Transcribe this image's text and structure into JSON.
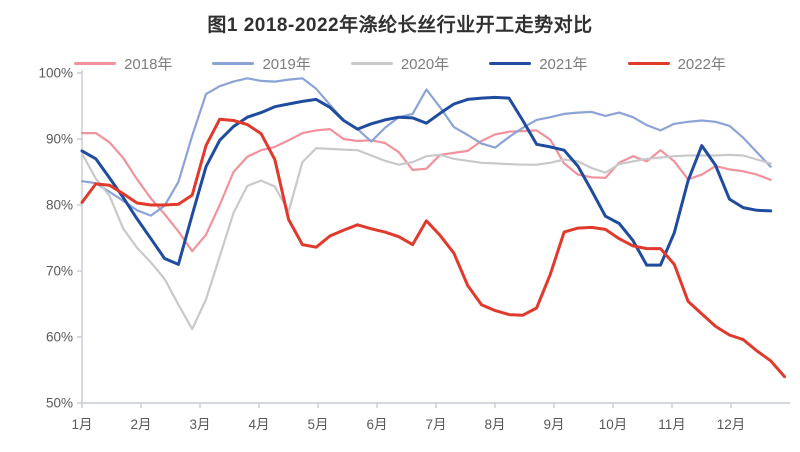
{
  "title": "图1 2018-2022年涤纶长丝行业开工走势对比",
  "colors": {
    "title_text": "#303030",
    "axis_line": "#c6cbd0",
    "tick_label": "#595959",
    "legend_label": "#7d7d7d",
    "background": "#ffffff"
  },
  "chart_data": {
    "type": "line",
    "title": "图1 2018-2022年涤纶长丝行业开工走势对比",
    "unit": "%",
    "grid": false,
    "legend_position": "top",
    "x_axis": {
      "labels": [
        "1月",
        "2月",
        "3月",
        "4月",
        "5月",
        "6月",
        "7月",
        "8月",
        "9月",
        "10月",
        "11月",
        "12月"
      ],
      "note": "weekly operating-rate data, ~4.33 points per month"
    },
    "y_axis": {
      "min": 50,
      "max": 100,
      "step": 10,
      "tick_labels": [
        "50%",
        "60%",
        "70%",
        "80%",
        "90%",
        "100%"
      ]
    },
    "series": [
      {
        "name": "2018年",
        "color": "#f2929d",
        "width": 2.2,
        "values": [
          90.9,
          90.9,
          89.5,
          87.1,
          83.9,
          81.0,
          78.6,
          76.0,
          73.0,
          75.5,
          80.0,
          85.0,
          87.3,
          88.3,
          88.8,
          89.8,
          90.9,
          91.3,
          91.5,
          90.0,
          89.7,
          89.8,
          89.4,
          88.0,
          85.3,
          85.5,
          87.6,
          87.9,
          88.2,
          89.7,
          90.7,
          91.1,
          91.2,
          91.3,
          89.9,
          86.3,
          84.6,
          84.2,
          84.1,
          86.4,
          87.4,
          86.6,
          88.3,
          86.6,
          83.9,
          84.6,
          85.9,
          85.4,
          85.1,
          84.6,
          83.8
        ]
      },
      {
        "name": "2019年",
        "color": "#8ba3d6",
        "width": 2.2,
        "values": [
          83.6,
          83.3,
          82.0,
          80.6,
          79.2,
          78.4,
          79.9,
          83.5,
          90.5,
          96.8,
          98.0,
          98.7,
          99.2,
          98.8,
          98.7,
          99.0,
          99.2,
          97.6,
          95.2,
          92.8,
          91.5,
          89.6,
          91.7,
          93.3,
          93.8,
          97.5,
          94.8,
          91.8,
          90.6,
          89.3,
          88.7,
          90.3,
          91.7,
          92.9,
          93.3,
          93.8,
          94.0,
          94.1,
          93.5,
          94.0,
          93.3,
          92.1,
          91.3,
          92.3,
          92.6,
          92.8,
          92.6,
          92.0,
          90.2,
          88.0,
          85.8
        ]
      },
      {
        "name": "2020年",
        "color": "#c9c9c9",
        "width": 2.2,
        "values": [
          87.8,
          84.0,
          81.4,
          76.4,
          73.5,
          71.3,
          68.8,
          64.9,
          61.2,
          65.7,
          72.2,
          78.8,
          82.9,
          83.7,
          82.8,
          79.0,
          86.5,
          88.6,
          88.5,
          88.4,
          88.3,
          87.5,
          86.7,
          86.1,
          86.5,
          87.4,
          87.6,
          87.0,
          86.7,
          86.4,
          86.3,
          86.2,
          86.1,
          86.1,
          86.4,
          86.9,
          86.6,
          85.6,
          84.9,
          86.2,
          86.6,
          87.0,
          87.2,
          87.4,
          87.5,
          87.5,
          87.5,
          87.6,
          87.5,
          86.9,
          86.3
        ]
      },
      {
        "name": "2021年",
        "color": "#1f4c9f",
        "width": 3,
        "values": [
          88.2,
          87.0,
          84.1,
          81.1,
          77.9,
          74.9,
          71.9,
          71.0,
          78.5,
          85.8,
          89.8,
          91.9,
          93.3,
          94.0,
          94.9,
          95.3,
          95.7,
          96.0,
          94.8,
          92.8,
          91.5,
          92.3,
          92.9,
          93.3,
          93.2,
          92.4,
          93.9,
          95.3,
          96.0,
          96.2,
          96.3,
          96.2,
          92.8,
          89.2,
          88.8,
          88.3,
          85.9,
          82.2,
          78.3,
          77.2,
          74.6,
          70.9,
          70.9,
          75.8,
          83.7,
          89.0,
          86.0,
          80.9,
          79.6,
          79.2,
          79.1
        ]
      },
      {
        "name": "2022年",
        "color": "#df3a2b",
        "width": 3,
        "values": [
          80.4,
          83.2,
          83.0,
          81.7,
          80.3,
          80.0,
          80.0,
          80.1,
          81.5,
          89.0,
          93.0,
          92.8,
          92.2,
          90.8,
          86.9,
          77.8,
          74.0,
          73.6,
          75.3,
          76.2,
          77.0,
          76.4,
          75.9,
          75.2,
          74.0,
          77.6,
          75.4,
          72.7,
          67.8,
          64.9,
          64.0,
          63.4,
          63.3,
          64.4,
          69.5,
          75.9,
          76.5,
          76.6,
          76.3,
          74.9,
          73.8,
          73.4,
          73.4,
          71.0,
          65.4,
          63.5,
          61.6,
          60.3,
          59.6,
          57.9,
          56.4,
          54.0
        ]
      }
    ]
  }
}
